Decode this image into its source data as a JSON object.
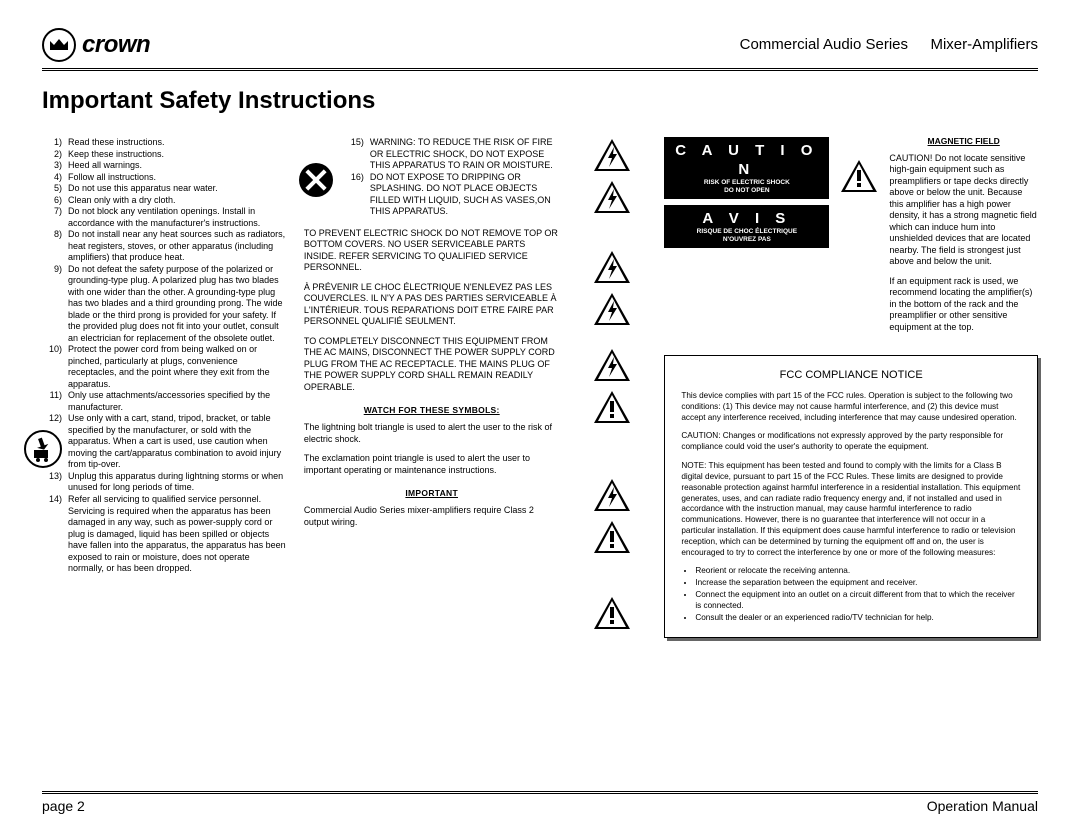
{
  "header": {
    "brand": "crown",
    "series": "Commercial Audio Series",
    "model": "Mixer-Amplifiers"
  },
  "title": "Important Safety Instructions",
  "instructions_col1": [
    "Read these instructions.",
    "Keep these instructions.",
    "Heed all warnings.",
    "Follow all instructions.",
    "Do not use this apparatus near water.",
    "Clean only with a dry cloth.",
    "Do not block any ventilation openings. Install in accordance with the manufacturer's instructions.",
    "Do not install near any heat sources such as radiators, heat registers, stoves, or other apparatus (including amplifiers) that produce heat.",
    "Do not defeat the safety purpose of the polarized or grounding-type plug. A polarized plug has two blades with one wider than the other. A grounding-type plug has two blades and a third grounding prong. The wide blade or the third prong is provided for your safety. If the provided plug does not fit into your outlet, consult an electrician for replacement of the obsolete outlet.",
    "Protect the power cord from being walked on or pinched, particularly at plugs, convenience receptacles, and the point where they exit from the apparatus.",
    "Only use attachments/accessories specified by the manufacturer.",
    "Use only with a cart, stand, tripod, bracket, or table specified by the manufacturer, or sold with the apparatus. When a cart is used, use caution when moving the cart/apparatus combination to avoid injury from tip-over.",
    "Unplug this apparatus during lightning storms or when unused for long periods of time.",
    "Refer all servicing to qualified service personnel. Servicing is required when the apparatus has been damaged in any way, such as power-supply cord or plug is damaged, liquid has been spilled or objects have fallen into the apparatus, the apparatus has been exposed to rain or moisture, does not operate normally, or has been dropped."
  ],
  "instructions_col2": [
    {
      "n": "15)",
      "t": "WARNING: TO REDUCE THE RISK OF FIRE OR ELECTRIC SHOCK, DO NOT EXPOSE THIS APPARATUS TO RAIN OR MOISTURE."
    },
    {
      "n": "16)",
      "t": "DO NOT EXPOSE TO DRIPPING OR SPLASHING. DO NOT PLACE OBJECTS FILLED WITH LIQUID, SUCH AS VASES,ON THIS APPARATUS."
    }
  ],
  "para_en": "TO PREVENT ELECTRIC SHOCK DO NOT REMOVE TOP OR BOTTOM COVERS. NO USER SERVICEABLE PARTS INSIDE. REFER SERVICING TO QUALIFIED SERVICE PERSONNEL.",
  "para_fr": "À PRÉVENIR LE CHOC ÉLECTRIQUE N'ENLEVEZ PAS LES COUVERCLES. IL N'Y A PAS DES PARTIES SERVICEABLE À L'INTÉRIEUR. TOUS REPARATIONS DOIT ETRE FAIRE PAR PERSONNEL QUALIFIÉ SEULMENT.",
  "para_disc": "TO COMPLETELY DISCONNECT THIS EQUIPMENT FROM THE AC MAINS, DISCONNECT THE POWER SUPPLY CORD PLUG FROM THE AC RECEPTACLE. THE MAINS PLUG OF THE POWER SUPPLY CORD SHALL REMAIN READILY OPERABLE.",
  "watch_hdr": "WATCH FOR THESE SYMBOLS:",
  "watch_bolt": "The lightning bolt triangle is used to alert the user to the risk of electric shock.",
  "watch_excl": "The exclamation point triangle is used to alert the user to important operating or maintenance instructions.",
  "important_hdr": "IMPORTANT",
  "important_txt": "Commercial Audio Series mixer-amplifiers require Class 2 output wiring.",
  "caution_box": {
    "title": "C A U T I O N",
    "l1": "RISK OF ELECTRIC SHOCK",
    "l2": "DO NOT OPEN"
  },
  "avis_box": {
    "title": "A V I S",
    "l1": "RISQUE DE CHOC ÉLECTRIQUE",
    "l2": "N'OUVREZ PAS"
  },
  "magnetic": {
    "hdr": "MAGNETIC FIELD",
    "p1": "CAUTION! Do not locate sensitive high-gain equipment such as preamplifiers or tape decks directly above or below the unit. Because this amplifier has a high power density, it has a strong magnetic field which can induce hum into unshielded devices that are located nearby. The field is strongest just above and below the unit.",
    "p2": "If an equipment rack is used, we recommend locating the amplifier(s) in the bottom of the rack and the preamplifier or other sensitive equipment at the top."
  },
  "fcc": {
    "title": "FCC COMPLIANCE NOTICE",
    "p1": "This device complies with part 15 of the FCC rules. Operation is subject to the following two conditions: (1) This device may not cause harmful interference, and (2) this device must accept any interference received, including interference that may cause undesired operation.",
    "p2": "CAUTION: Changes or modifications not expressly approved by the party responsible for compliance could void the user's authority to operate the equipment.",
    "p3": "NOTE: This equipment has been tested and found to comply with the limits for a Class B digital device, pursuant to part 15 of the FCC Rules. These limits are designed to provide reasonable protection against harmful interference in a residential installation. This equipment generates, uses, and can radiate radio frequency energy and, if not installed and used in accordance with the instruction manual, may cause harmful interference to radio communications. However, there is no guarantee that interference will not occur in a particular installation. If this equipment does cause harmful interference to radio or television reception, which can be determined by turning the equipment off and on, the user is encouraged to try to correct the interference by one or more of the following measures:",
    "bullets": [
      "Reorient or relocate the receiving antenna.",
      "Increase the separation between the equipment and receiver.",
      "Connect the equipment into an outlet on a circuit different from that to which the receiver is connected.",
      "Consult the dealer or an experienced radio/TV technician for help."
    ]
  },
  "footer": {
    "left": "page 2",
    "right": "Operation Manual"
  }
}
